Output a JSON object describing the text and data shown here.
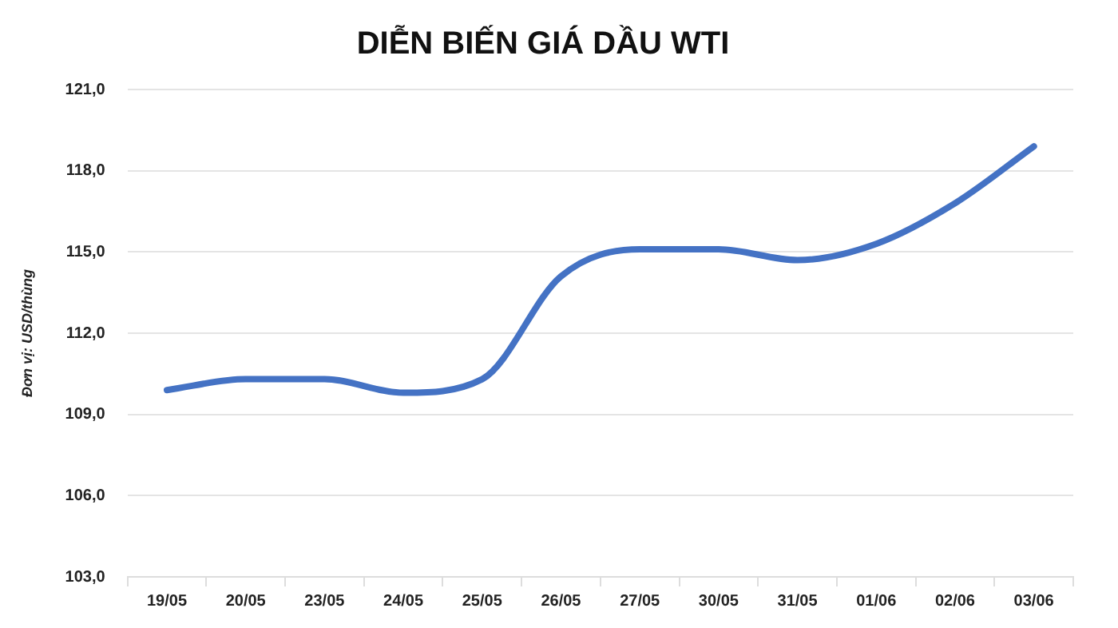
{
  "chart_data": {
    "type": "line",
    "title": "DIỄN BIẾN GIÁ DẦU WTI",
    "ylabel": "Đơn vị: USD/thùng",
    "categories": [
      "19/05",
      "20/05",
      "23/05",
      "24/05",
      "25/05",
      "26/05",
      "27/05",
      "30/05",
      "31/05",
      "01/06",
      "02/06",
      "03/06"
    ],
    "series": [
      {
        "color": "#4472c4",
        "values": [
          109.9,
          110.3,
          110.3,
          109.8,
          110.3,
          114.1,
          115.1,
          115.1,
          114.7,
          115.3,
          116.8,
          118.9
        ]
      }
    ],
    "ylim": [
      103,
      121
    ],
    "yticks": [
      {
        "value": 103,
        "label": "103,0"
      },
      {
        "value": 106,
        "label": "106,0"
      },
      {
        "value": 109,
        "label": "109,0"
      },
      {
        "value": 112,
        "label": "112,0"
      },
      {
        "value": 115,
        "label": "115,0"
      },
      {
        "value": 118,
        "label": "118,0"
      },
      {
        "value": 121,
        "label": "121,0"
      }
    ],
    "grid": "y",
    "legend": false,
    "marker": "none",
    "line_style": "solid"
  }
}
